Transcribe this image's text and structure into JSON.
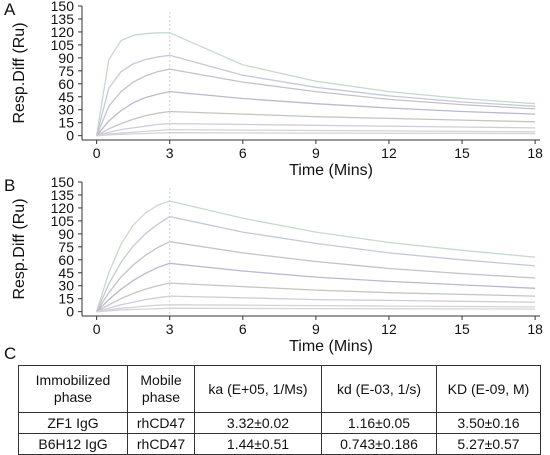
{
  "panels": {
    "a_letter": "A",
    "b_letter": "B",
    "c_letter": "C"
  },
  "chart_data": [
    {
      "type": "line",
      "panel": "A",
      "xlabel": "Time  (Mins)",
      "ylabel": "Resp.Diff  (Ru)",
      "xlim": [
        -0.6,
        18.2
      ],
      "ylim": [
        -5,
        150
      ],
      "xticks": [
        0,
        3,
        6,
        9,
        12,
        15,
        18
      ],
      "yticks": [
        0,
        15,
        30,
        45,
        60,
        75,
        90,
        105,
        120,
        135,
        150
      ],
      "injection_end_min": 3,
      "grid": false,
      "series": [
        {
          "x": [
            0,
            0.5,
            1,
            1.5,
            2,
            2.5,
            3,
            6,
            9,
            12,
            15,
            18
          ],
          "y": [
            0,
            88,
            110,
            116,
            118,
            119,
            119,
            82,
            63,
            51,
            43,
            37
          ]
        },
        {
          "x": [
            0,
            0.5,
            1,
            1.5,
            2,
            2.5,
            3,
            6,
            9,
            12,
            15,
            18
          ],
          "y": [
            0,
            55,
            74,
            83,
            88,
            91,
            93,
            70,
            56,
            46,
            39,
            34
          ]
        },
        {
          "x": [
            0,
            0.5,
            1,
            1.5,
            2,
            2.5,
            3,
            6,
            9,
            12,
            15,
            18
          ],
          "y": [
            0,
            34,
            51,
            62,
            69,
            74,
            77,
            62,
            51,
            42,
            36,
            31
          ]
        },
        {
          "x": [
            0,
            0.5,
            1,
            1.5,
            2,
            2.5,
            3,
            6,
            9,
            12,
            15,
            18
          ],
          "y": [
            0,
            17,
            29,
            38,
            44,
            48,
            51,
            43,
            37,
            32,
            28,
            25
          ]
        },
        {
          "x": [
            0,
            0.5,
            1,
            1.5,
            2,
            2.5,
            3,
            6,
            9,
            12,
            15,
            18
          ],
          "y": [
            0,
            8,
            14,
            19,
            23,
            26,
            28,
            25,
            22,
            20,
            18,
            16
          ]
        },
        {
          "x": [
            0,
            0.5,
            1,
            1.5,
            2,
            2.5,
            3,
            6,
            9,
            12,
            15,
            18
          ],
          "y": [
            0,
            4,
            7,
            9,
            11,
            13,
            14,
            13,
            12,
            11,
            10,
            9
          ]
        },
        {
          "x": [
            0,
            0.5,
            1,
            1.5,
            2,
            2.5,
            3,
            6,
            9,
            12,
            15,
            18
          ],
          "y": [
            0,
            2,
            3,
            4,
            5,
            6,
            7,
            6.5,
            6,
            5.5,
            5,
            4.5
          ]
        },
        {
          "x": [
            0,
            0.5,
            1,
            1.5,
            2,
            2.5,
            3,
            6,
            9,
            12,
            15,
            18
          ],
          "y": [
            0,
            1,
            1.5,
            2,
            2.5,
            3,
            3.5,
            3.2,
            3,
            2.8,
            2.6,
            2.4
          ]
        }
      ]
    },
    {
      "type": "line",
      "panel": "B",
      "xlabel": "Time  (Mins)",
      "ylabel": "Resp.Diff  (Ru)",
      "xlim": [
        -0.6,
        18.2
      ],
      "ylim": [
        -5,
        150
      ],
      "xticks": [
        0,
        3,
        6,
        9,
        12,
        15,
        18
      ],
      "yticks": [
        0,
        15,
        30,
        45,
        60,
        75,
        90,
        105,
        120,
        135,
        150
      ],
      "injection_end_min": 3,
      "grid": false,
      "series": [
        {
          "x": [
            0,
            0.5,
            1,
            1.5,
            2,
            2.5,
            3,
            6,
            9,
            12,
            15,
            18
          ],
          "y": [
            0,
            45,
            78,
            100,
            114,
            123,
            128,
            108,
            92,
            80,
            71,
            63
          ]
        },
        {
          "x": [
            0,
            0.5,
            1,
            1.5,
            2,
            2.5,
            3,
            6,
            9,
            12,
            15,
            18
          ],
          "y": [
            0,
            32,
            57,
            76,
            90,
            101,
            110,
            92,
            79,
            68,
            60,
            53
          ]
        },
        {
          "x": [
            0,
            0.5,
            1,
            1.5,
            2,
            2.5,
            3,
            6,
            9,
            12,
            15,
            18
          ],
          "y": [
            0,
            22,
            40,
            54,
            65,
            74,
            81,
            68,
            58,
            50,
            44,
            39
          ]
        },
        {
          "x": [
            0,
            0.5,
            1,
            1.5,
            2,
            2.5,
            3,
            6,
            9,
            12,
            15,
            18
          ],
          "y": [
            0,
            14,
            26,
            36,
            44,
            51,
            56,
            47,
            40,
            35,
            31,
            27
          ]
        },
        {
          "x": [
            0,
            0.5,
            1,
            1.5,
            2,
            2.5,
            3,
            6,
            9,
            12,
            15,
            18
          ],
          "y": [
            0,
            8,
            15,
            21,
            26,
            30,
            33,
            29,
            25,
            22,
            20,
            18
          ]
        },
        {
          "x": [
            0,
            0.5,
            1,
            1.5,
            2,
            2.5,
            3,
            6,
            9,
            12,
            15,
            18
          ],
          "y": [
            0,
            4,
            8,
            11,
            14,
            16,
            18,
            16,
            14,
            13,
            12,
            11
          ]
        },
        {
          "x": [
            0,
            0.5,
            1,
            1.5,
            2,
            2.5,
            3,
            6,
            9,
            12,
            15,
            18
          ],
          "y": [
            0,
            2,
            4,
            5,
            6.5,
            7.5,
            8,
            7.5,
            7,
            6.5,
            6,
            5.5
          ]
        },
        {
          "x": [
            0,
            0.5,
            1,
            1.5,
            2,
            2.5,
            3,
            6,
            9,
            12,
            15,
            18
          ],
          "y": [
            0,
            1,
            2,
            2.5,
            3,
            3.5,
            4,
            3.8,
            3.6,
            3.4,
            3.2,
            3
          ]
        }
      ]
    }
  ],
  "series_colors": [
    "#c7d9c9",
    "#c4c9da",
    "#c6c1c9",
    "#b9b9cf",
    "#c2c7bf",
    "#d3ccd6",
    "#d8d0d8",
    "#cfd6da"
  ],
  "table": {
    "headers": [
      "Immobilized phase",
      "Mobile phase",
      "ka (E+05, 1/Ms)",
      "kd (E-03, 1/s)",
      "KD (E-09, M)"
    ],
    "rows": [
      [
        "ZF1 IgG",
        "rhCD47",
        "3.32±0.02",
        "1.16±0.05",
        "3.50±0.16"
      ],
      [
        "B6H12 IgG",
        "rhCD47",
        "1.44±0.51",
        "0.743±0.186",
        "5.27±0.57"
      ]
    ]
  }
}
